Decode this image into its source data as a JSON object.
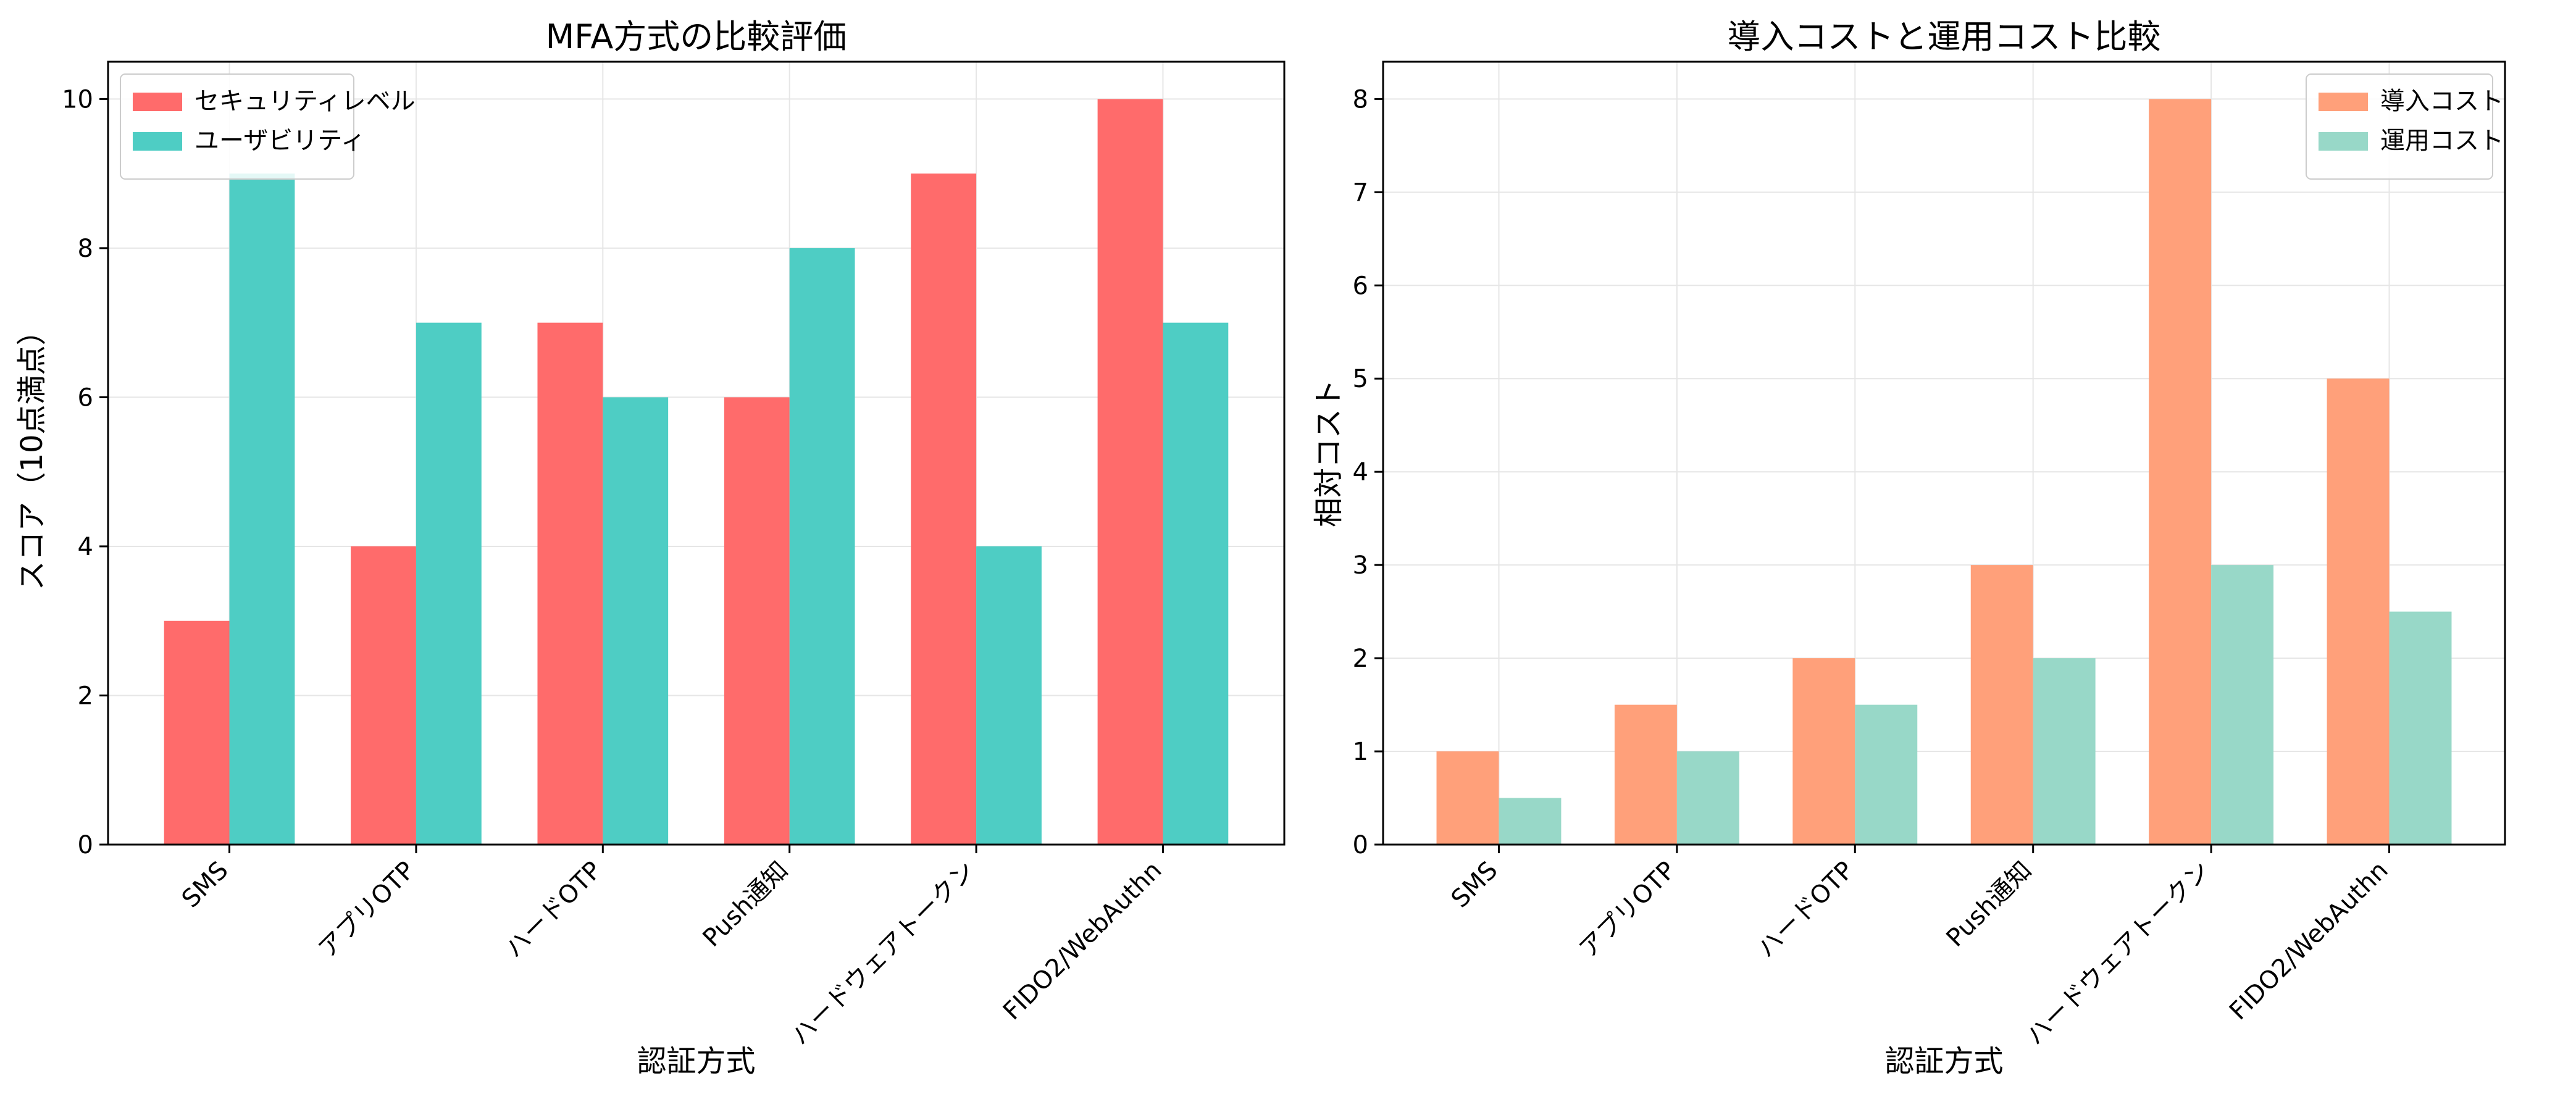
{
  "chart_data": [
    {
      "type": "bar",
      "title": "MFA方式の比較評価",
      "xlabel": "認証方式",
      "ylabel": "スコア（10点満点）",
      "categories": [
        "SMS",
        "アプリOTP",
        "ハードOTP",
        "Push通知",
        "ハードウェアトークン",
        "FIDO2/WebAuthn"
      ],
      "series": [
        {
          "name": "セキュリティレベル",
          "values": [
            3,
            4,
            7,
            6,
            9,
            10
          ],
          "color": "#ff6b6b"
        },
        {
          "name": "ユーザビリティ",
          "values": [
            9,
            7,
            6,
            8,
            4,
            7
          ],
          "color": "#4ecdc4"
        }
      ],
      "ylim": [
        0,
        10.5
      ],
      "yticks": [
        0,
        2,
        4,
        6,
        8,
        10
      ],
      "grid": true,
      "legend": "top-left"
    },
    {
      "type": "bar",
      "title": "導入コストと運用コスト比較",
      "xlabel": "認証方式",
      "ylabel": "相対コスト",
      "categories": [
        "SMS",
        "アプリOTP",
        "ハードOTP",
        "Push通知",
        "ハードウェアトークン",
        "FIDO2/WebAuthn"
      ],
      "series": [
        {
          "name": "導入コスト",
          "values": [
            1,
            1.5,
            2,
            3,
            8,
            5
          ],
          "color": "#ffa07a"
        },
        {
          "name": "運用コスト",
          "values": [
            0.5,
            1,
            1.5,
            2,
            3,
            2.5
          ],
          "color": "#98d8c8"
        }
      ],
      "ylim": [
        0,
        8.4
      ],
      "yticks": [
        0,
        1,
        2,
        3,
        4,
        5,
        6,
        7,
        8
      ],
      "grid": true,
      "legend": "top-right"
    }
  ]
}
